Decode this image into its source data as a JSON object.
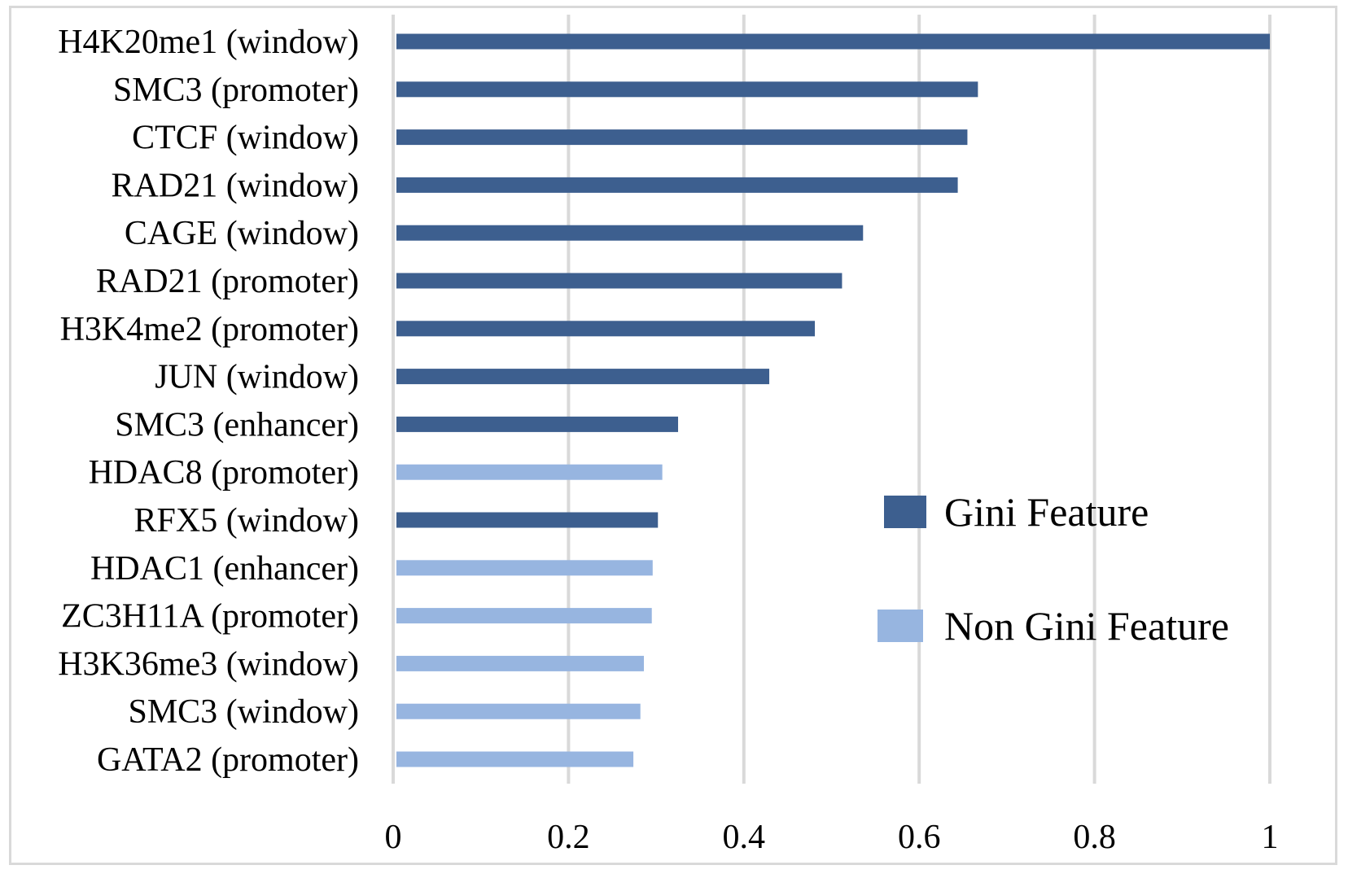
{
  "chart_data": {
    "type": "bar",
    "orientation": "horizontal",
    "categories": [
      "H4K20me1 (window)",
      "SMC3 (promoter)",
      "CTCF (window)",
      "RAD21 (window)",
      "CAGE (window)",
      "RAD21 (promoter)",
      "H3K4me2 (promoter)",
      "JUN (window)",
      "SMC3 (enhancer)",
      "HDAC8 (promoter)",
      "RFX5 (window)",
      "HDAC1 (enhancer)",
      "ZC3H11A (promoter)",
      "H3K36me3 (window)",
      "SMC3 (window)",
      "GATA2 (promoter)"
    ],
    "values": [
      1.0,
      0.667,
      0.655,
      0.644,
      0.536,
      0.512,
      0.481,
      0.429,
      0.325,
      0.307,
      0.302,
      0.296,
      0.295,
      0.286,
      0.282,
      0.274
    ],
    "groups": [
      "gini",
      "gini",
      "gini",
      "gini",
      "gini",
      "gini",
      "gini",
      "gini",
      "gini",
      "non_gini",
      "gini",
      "non_gini",
      "non_gini",
      "non_gini",
      "non_gini",
      "non_gini"
    ],
    "legend": [
      {
        "key": "gini",
        "name": "Gini Feature",
        "color": "#3d5f8f"
      },
      {
        "key": "non_gini",
        "name": "Non Gini Feature",
        "color": "#97b5e0"
      }
    ],
    "legend_position": "right",
    "xlim": [
      0,
      1
    ],
    "xticks": [
      0,
      0.2,
      0.4,
      0.6,
      0.8,
      1
    ],
    "xtick_labels": [
      "0",
      "0.2",
      "0.4",
      "0.6",
      "0.8",
      "1"
    ],
    "grid": "vertical",
    "gridline_color": "#d9d9d9",
    "title": "",
    "xlabel": "",
    "ylabel": ""
  }
}
